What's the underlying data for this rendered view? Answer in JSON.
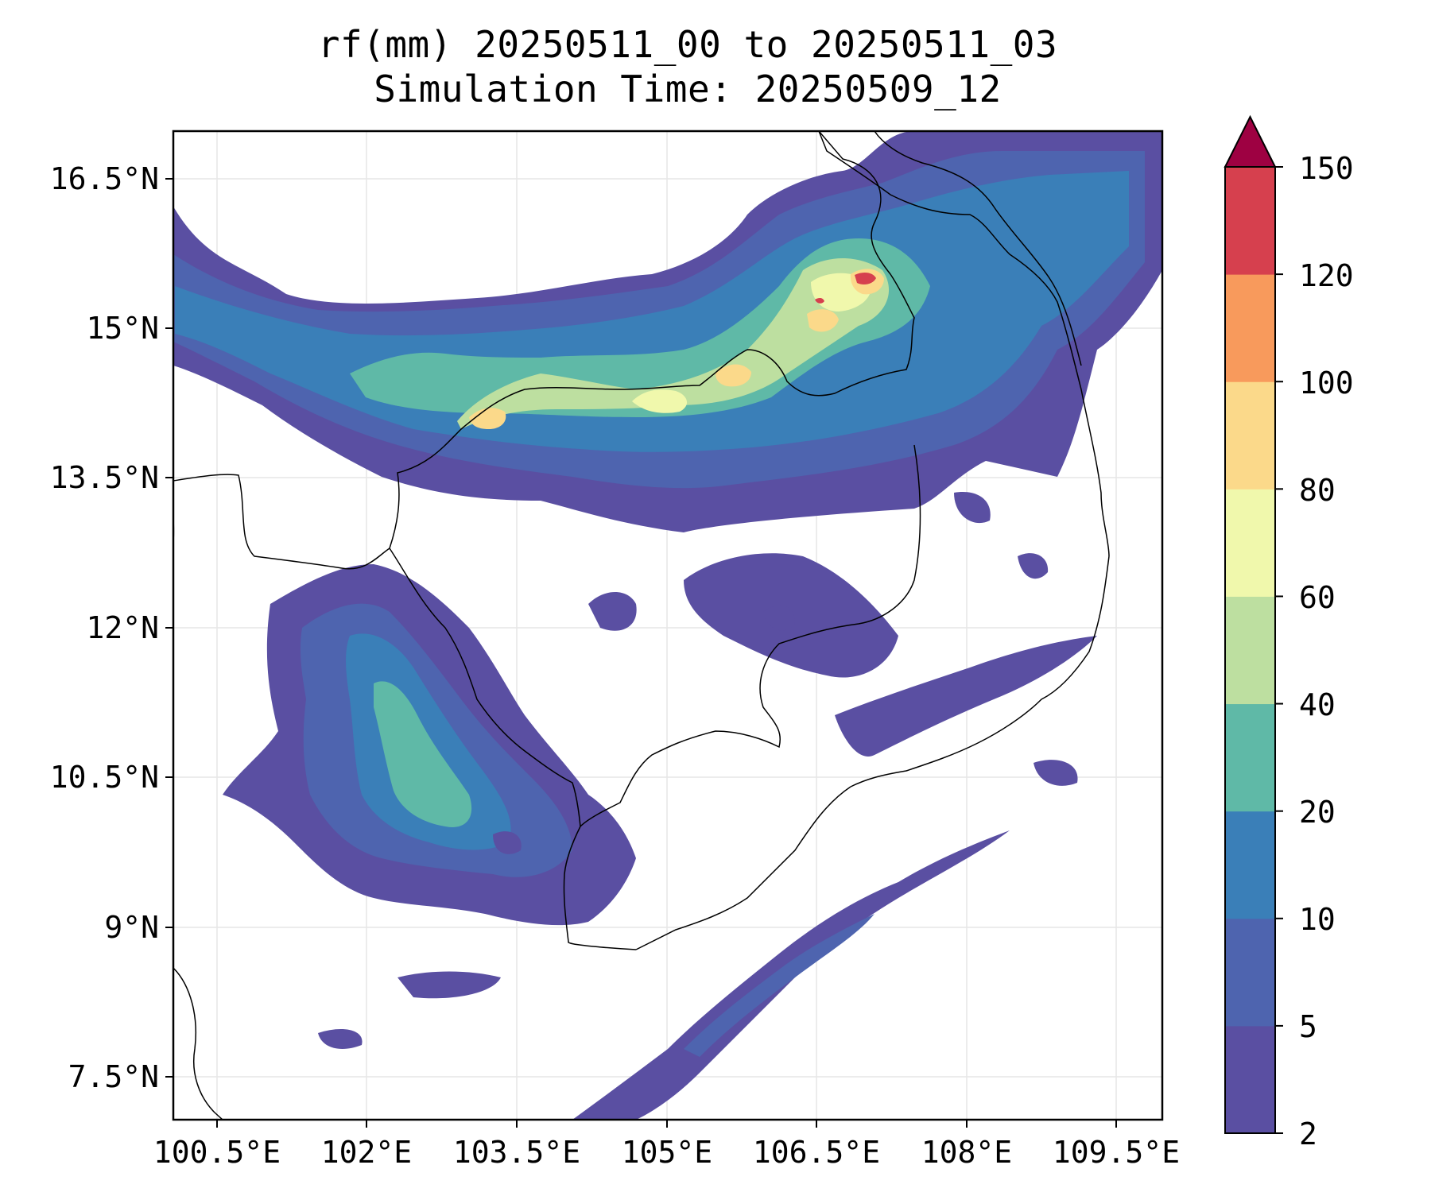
{
  "title": {
    "line1": "rf(mm) 20250511_00 to 20250511_03",
    "line2": "Simulation Time: 20250509_12"
  },
  "axes": {
    "lon_ticks": [
      "100.5°E",
      "102°E",
      "103.5°E",
      "105°E",
      "106.5°E",
      "108°E",
      "109.5°E"
    ],
    "lat_ticks": [
      "16.5°N",
      "15°N",
      "13.5°N",
      "12°N",
      "10.5°N",
      "9°N",
      "7.5°N"
    ]
  },
  "colorbar": {
    "levels": [
      "2",
      "5",
      "10",
      "20",
      "40",
      "60",
      "80",
      "100",
      "120",
      "150"
    ],
    "colors": [
      "#5a4fa2",
      "#4e64af",
      "#3a7fb8",
      "#5fb9a7",
      "#bddfa0",
      "#f0f8ac",
      "#fbd98a",
      "#f89a5c",
      "#d6404e",
      "#9e0142"
    ],
    "extend_color": "#9e0142"
  },
  "map_colors": {
    "frame": "#000000",
    "coastline": "#000000",
    "grid": "#e6e6e6"
  }
}
